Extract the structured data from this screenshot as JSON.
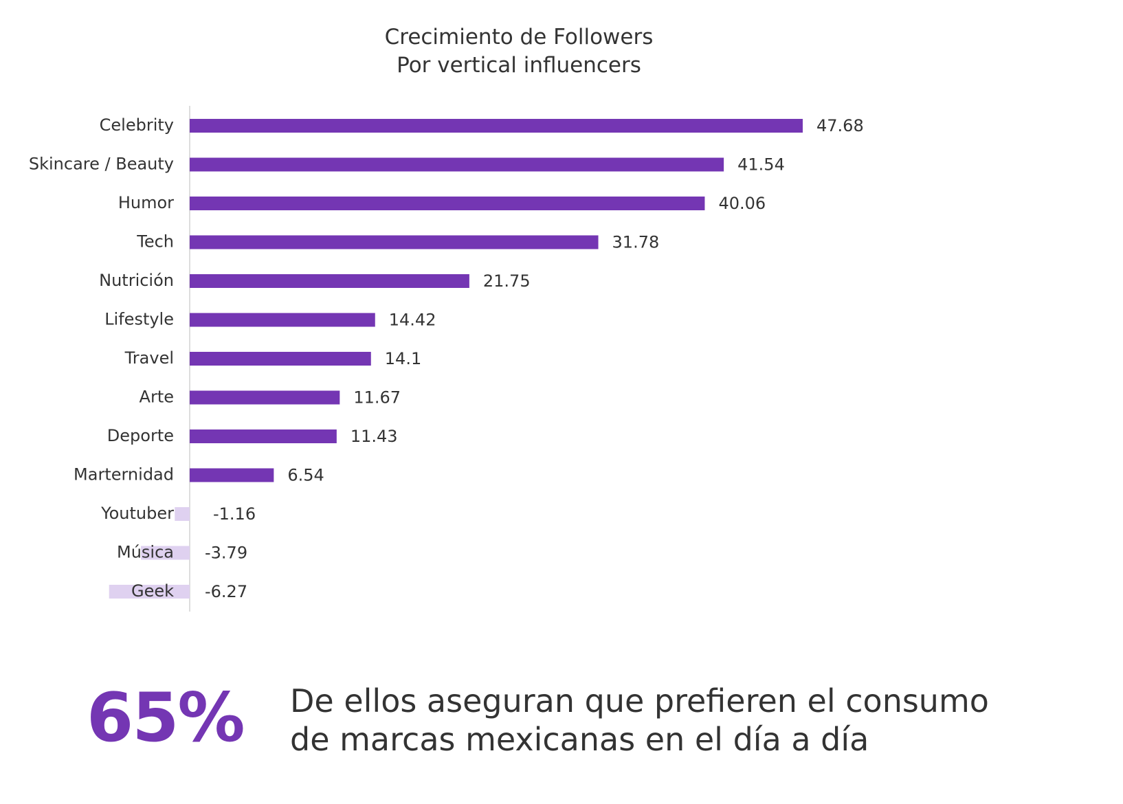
{
  "chart_data": {
    "type": "bar",
    "orientation": "horizontal",
    "title": "Crecimiento de Followers",
    "subtitle": "Por vertical influencers",
    "categories": [
      "Celebrity",
      "Skincare / Beauty",
      "Humor",
      "Tech",
      "Nutrición",
      "Lifestyle",
      "Travel",
      "Arte",
      "Deporte",
      "Marternidad",
      "Youtuber",
      "Música",
      "Geek"
    ],
    "values": [
      47.68,
      41.54,
      40.06,
      31.78,
      21.75,
      14.42,
      14.1,
      11.67,
      11.43,
      6.54,
      -1.16,
      -3.79,
      -6.27
    ],
    "value_labels": [
      "47.68",
      "41.54",
      "40.06",
      "31.78",
      "21.75",
      "14.42",
      "14.1",
      "11.67",
      "11.43",
      "6.54",
      "-1.16",
      "-3.79",
      "-6.27"
    ],
    "xlim": [
      -6.27,
      47.68
    ],
    "grid": false,
    "legend": "none",
    "colors": {
      "positive": "#7436b3",
      "negative": "#dfd1f0",
      "axis": "#dddddd",
      "text": "#333333"
    }
  },
  "stat": {
    "value": "65%",
    "text_line1": "De ellos aseguran que prefieren el consumo",
    "text_line2": "de marcas mexicanas en el día a día"
  }
}
